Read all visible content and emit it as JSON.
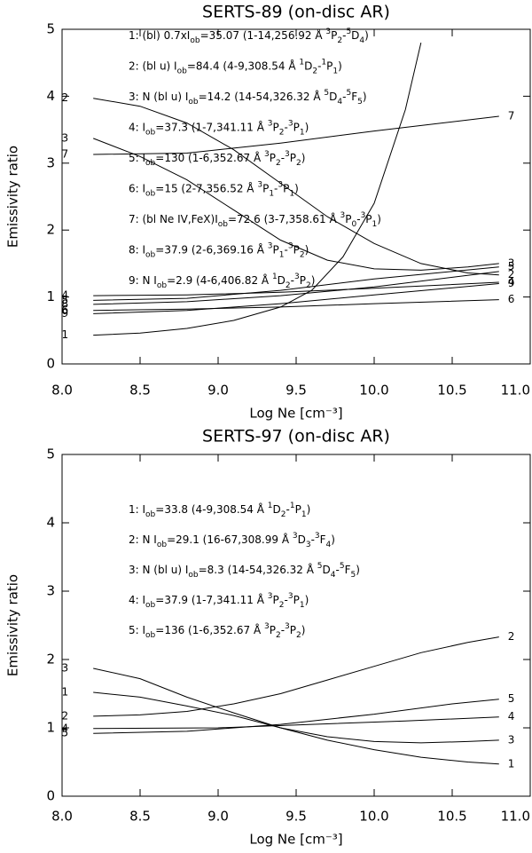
{
  "chart_data": [
    {
      "type": "line",
      "title": "SERTS-89 (on-disc AR)",
      "xlabel": "Log Ne [cm⁻³]",
      "ylabel": "Emissivity ratio",
      "xlim": [
        8.0,
        11.0
      ],
      "ylim": [
        0,
        5
      ],
      "xticks": [
        {
          "value": 8,
          "label": "8.0"
        },
        {
          "value": 8.5,
          "label": "8.5"
        },
        {
          "value": 9,
          "label": "9.0"
        },
        {
          "value": 9.5,
          "label": "9.5"
        },
        {
          "value": 10,
          "label": "10.0"
        },
        {
          "value": 10.5,
          "label": "10.5"
        },
        {
          "value": 11,
          "label": "11.0"
        }
      ],
      "yticks": [
        0,
        1,
        2,
        3,
        4,
        5
      ],
      "color": "#000000",
      "series": [
        {
          "name": "1",
          "x": [
            8.2,
            8.5,
            8.8,
            9.1,
            9.4,
            9.6,
            9.8,
            10.0,
            10.2,
            10.3
          ],
          "values": [
            0.43,
            0.46,
            0.53,
            0.65,
            0.85,
            1.1,
            1.6,
            2.4,
            3.8,
            4.8
          ],
          "end_label": false
        },
        {
          "name": "2",
          "x": [
            8.2,
            8.5,
            8.8,
            9.1,
            9.4,
            9.7,
            10.0,
            10.3,
            10.6,
            10.8
          ],
          "values": [
            3.97,
            3.85,
            3.6,
            3.2,
            2.7,
            2.2,
            1.8,
            1.5,
            1.36,
            1.33
          ]
        },
        {
          "name": "3",
          "x": [
            8.2,
            8.5,
            8.8,
            9.1,
            9.4,
            9.7,
            10.0,
            10.3,
            10.6,
            10.8
          ],
          "values": [
            3.37,
            3.1,
            2.75,
            2.3,
            1.85,
            1.55,
            1.42,
            1.4,
            1.45,
            1.5
          ]
        },
        {
          "name": "4",
          "x": [
            8.2,
            8.8,
            9.4,
            10.0,
            10.8
          ],
          "values": [
            1.02,
            1.03,
            1.07,
            1.13,
            1.22
          ]
        },
        {
          "name": "5",
          "x": [
            8.2,
            8.8,
            9.4,
            10.0,
            10.8
          ],
          "values": [
            0.95,
            0.98,
            1.1,
            1.27,
            1.45
          ]
        },
        {
          "name": "6",
          "x": [
            8.2,
            8.8,
            9.4,
            10.0,
            10.8
          ],
          "values": [
            0.8,
            0.82,
            0.85,
            0.9,
            0.96
          ]
        },
        {
          "name": "7",
          "x": [
            8.2,
            8.8,
            9.4,
            10.0,
            10.8
          ],
          "values": [
            3.13,
            3.15,
            3.3,
            3.48,
            3.7
          ]
        },
        {
          "name": "8",
          "x": [
            8.2,
            8.8,
            9.4,
            10.0,
            10.8
          ],
          "values": [
            0.89,
            0.93,
            1.02,
            1.15,
            1.38
          ],
          "end_label": false
        },
        {
          "name": "9",
          "x": [
            8.2,
            8.8,
            9.4,
            10.0,
            10.8
          ],
          "values": [
            0.75,
            0.8,
            0.9,
            1.03,
            1.2
          ]
        }
      ],
      "annotations": [
        [
          "1: (bl) 0.7xI",
          {
            "sub": "ob"
          },
          "=35.07 (1-14,256.92 Å ",
          {
            "sup": "3"
          },
          "P",
          {
            "sub": "2"
          },
          "-",
          {
            "sup": "5"
          },
          "D",
          {
            "sub": "4"
          },
          ")"
        ],
        [
          "2: (bl u) I",
          {
            "sub": "ob"
          },
          "=84.4 (4-9,308.54 Å ",
          {
            "sup": "1"
          },
          "D",
          {
            "sub": "2"
          },
          "-",
          {
            "sup": "1"
          },
          "P",
          {
            "sub": "1"
          },
          ")"
        ],
        [
          "3: N (bl u) I",
          {
            "sub": "ob"
          },
          "=14.2 (14-54,326.32 Å ",
          {
            "sup": "5"
          },
          "D",
          {
            "sub": "4"
          },
          "-",
          {
            "sup": "5"
          },
          "F",
          {
            "sub": "5"
          },
          ")"
        ],
        [
          "4: I",
          {
            "sub": "ob"
          },
          "=37.3 (1-7,341.11 Å ",
          {
            "sup": "3"
          },
          "P",
          {
            "sub": "2"
          },
          "-",
          {
            "sup": "3"
          },
          "P",
          {
            "sub": "1"
          },
          ")"
        ],
        [
          "5: I",
          {
            "sub": "ob"
          },
          "=130 (1-6,352.67 Å ",
          {
            "sup": "3"
          },
          "P",
          {
            "sub": "2"
          },
          "-",
          {
            "sup": "3"
          },
          "P",
          {
            "sub": "2"
          },
          ")"
        ],
        [
          "6: I",
          {
            "sub": "ob"
          },
          "=15 (2-7,356.52 Å ",
          {
            "sup": "3"
          },
          "P",
          {
            "sub": "1"
          },
          "-",
          {
            "sup": "3"
          },
          "P",
          {
            "sub": "1"
          },
          ")"
        ],
        [
          "7: (bl Ne IV,FeX)I",
          {
            "sub": "ob"
          },
          "=72.6 (3-7,358.61 Å ",
          {
            "sup": "3"
          },
          "P",
          {
            "sub": "0"
          },
          "-",
          {
            "sup": "3"
          },
          "P",
          {
            "sub": "1"
          },
          ")"
        ],
        [
          "8: I",
          {
            "sub": "ob"
          },
          "=37.9 (2-6,369.16 Å ",
          {
            "sup": "3"
          },
          "P",
          {
            "sub": "1"
          },
          "-",
          {
            "sup": "3"
          },
          "P",
          {
            "sub": "2"
          },
          ")"
        ],
        [
          "9: N I",
          {
            "sub": "ob"
          },
          "=2.9 (4-6,406.82 Å ",
          {
            "sup": "1"
          },
          "D",
          {
            "sub": "2"
          },
          "-",
          {
            "sup": "3"
          },
          "P",
          {
            "sub": "2"
          },
          ")"
        ]
      ]
    },
    {
      "type": "line",
      "title": "SERTS-97 (on-disc AR)",
      "xlabel": "Log Ne [cm⁻³]",
      "ylabel": "Emissivity ratio",
      "xlim": [
        8.0,
        11.0
      ],
      "ylim": [
        0,
        5
      ],
      "xticks": [
        {
          "value": 8,
          "label": "8.0"
        },
        {
          "value": 8.5,
          "label": "8.5"
        },
        {
          "value": 9,
          "label": "9.0"
        },
        {
          "value": 9.5,
          "label": "9.5"
        },
        {
          "value": 10,
          "label": "10.0"
        },
        {
          "value": 10.5,
          "label": "10.5"
        },
        {
          "value": 11,
          "label": "11.0"
        }
      ],
      "yticks": [
        0,
        1,
        2,
        3,
        4,
        5
      ],
      "color": "#000000",
      "series": [
        {
          "name": "1",
          "x": [
            8.2,
            8.5,
            8.8,
            9.1,
            9.4,
            9.7,
            10.0,
            10.3,
            10.6,
            10.8
          ],
          "values": [
            1.52,
            1.45,
            1.32,
            1.18,
            1.0,
            0.82,
            0.68,
            0.57,
            0.5,
            0.47
          ]
        },
        {
          "name": "2",
          "x": [
            8.2,
            8.5,
            8.8,
            9.1,
            9.4,
            9.7,
            10.0,
            10.3,
            10.6,
            10.8
          ],
          "values": [
            1.17,
            1.19,
            1.24,
            1.35,
            1.5,
            1.7,
            1.9,
            2.1,
            2.25,
            2.33
          ]
        },
        {
          "name": "3",
          "x": [
            8.2,
            8.5,
            8.8,
            9.1,
            9.4,
            9.7,
            10.0,
            10.3,
            10.6,
            10.8
          ],
          "values": [
            1.87,
            1.72,
            1.45,
            1.22,
            1.0,
            0.87,
            0.8,
            0.78,
            0.8,
            0.82
          ]
        },
        {
          "name": "4",
          "x": [
            8.2,
            9.0,
            9.6,
            10.2,
            10.8
          ],
          "values": [
            0.99,
            1.0,
            1.05,
            1.1,
            1.16
          ]
        },
        {
          "name": "5",
          "x": [
            8.2,
            8.8,
            9.4,
            10.0,
            10.5,
            10.8
          ],
          "values": [
            0.92,
            0.95,
            1.05,
            1.2,
            1.35,
            1.42
          ]
        }
      ],
      "annotations": [
        [
          "1:  I",
          {
            "sub": "ob"
          },
          "=33.8 (4-9,308.54 Å ",
          {
            "sup": "1"
          },
          "D",
          {
            "sub": "2"
          },
          "-",
          {
            "sup": "1"
          },
          "P",
          {
            "sub": "1"
          },
          ")"
        ],
        [
          "2: N I",
          {
            "sub": "ob"
          },
          "=29.1 (16-67,308.99 Å ",
          {
            "sup": "3"
          },
          "D",
          {
            "sub": "3"
          },
          "-",
          {
            "sup": "3"
          },
          "F",
          {
            "sub": "4"
          },
          ")"
        ],
        [
          "3: N (bl u) I",
          {
            "sub": "ob"
          },
          "=8.3 (14-54,326.32 Å ",
          {
            "sup": "5"
          },
          "D",
          {
            "sub": "4"
          },
          "-",
          {
            "sup": "5"
          },
          "F",
          {
            "sub": "5"
          },
          ")"
        ],
        [
          "4: I",
          {
            "sub": "ob"
          },
          "=37.9 (1-7,341.11 Å ",
          {
            "sup": "3"
          },
          "P",
          {
            "sub": "2"
          },
          "-",
          {
            "sup": "3"
          },
          "P",
          {
            "sub": "1"
          },
          ")"
        ],
        [
          "5: I",
          {
            "sub": "ob"
          },
          "=136 (1-6,352.67 Å ",
          {
            "sup": "3"
          },
          "P",
          {
            "sub": "2"
          },
          "-",
          {
            "sup": "3"
          },
          "P",
          {
            "sub": "2"
          },
          ")"
        ]
      ]
    }
  ]
}
